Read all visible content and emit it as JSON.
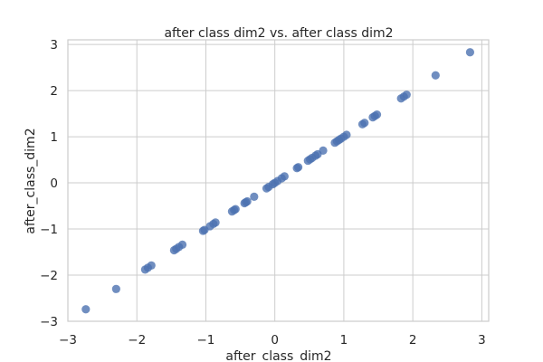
{
  "chart_data": {
    "type": "scatter",
    "title": "after class dim2 vs. after class dim2",
    "xlabel": "after_class_dim2",
    "ylabel": "after_class_dim2",
    "xlim": [
      -3,
      3.1
    ],
    "ylim": [
      -3,
      3.1
    ],
    "xticks": [
      -3,
      -2,
      -1,
      0,
      1,
      2,
      3
    ],
    "yticks": [
      -3,
      -2,
      -1,
      0,
      1,
      2,
      3
    ],
    "xtick_labels": [
      "−3",
      "−2",
      "−1",
      "0",
      "1",
      "2",
      "3"
    ],
    "ytick_labels": [
      "−3",
      "−2",
      "−1",
      "0",
      "1",
      "2",
      "3"
    ],
    "grid": true,
    "point_color": "#4c72b0",
    "series": [
      {
        "points": [
          [
            -2.74,
            -2.74
          ],
          [
            -2.3,
            -2.3
          ],
          [
            -1.88,
            -1.88
          ],
          [
            -1.84,
            -1.84
          ],
          [
            -1.79,
            -1.79
          ],
          [
            -1.46,
            -1.46
          ],
          [
            -1.43,
            -1.43
          ],
          [
            -1.39,
            -1.39
          ],
          [
            -1.34,
            -1.34
          ],
          [
            -1.04,
            -1.04
          ],
          [
            -1.02,
            -1.02
          ],
          [
            -0.94,
            -0.94
          ],
          [
            -0.89,
            -0.89
          ],
          [
            -0.86,
            -0.86
          ],
          [
            -0.62,
            -0.62
          ],
          [
            -0.59,
            -0.59
          ],
          [
            -0.57,
            -0.57
          ],
          [
            -0.44,
            -0.44
          ],
          [
            -0.42,
            -0.42
          ],
          [
            -0.4,
            -0.4
          ],
          [
            -0.3,
            -0.3
          ],
          [
            -0.12,
            -0.12
          ],
          [
            -0.09,
            -0.09
          ],
          [
            -0.03,
            -0.03
          ],
          [
            0.0,
            0.0
          ],
          [
            0.04,
            0.04
          ],
          [
            0.1,
            0.1
          ],
          [
            0.14,
            0.14
          ],
          [
            0.32,
            0.32
          ],
          [
            0.34,
            0.34
          ],
          [
            0.48,
            0.48
          ],
          [
            0.51,
            0.51
          ],
          [
            0.54,
            0.54
          ],
          [
            0.59,
            0.59
          ],
          [
            0.62,
            0.62
          ],
          [
            0.7,
            0.7
          ],
          [
            0.87,
            0.87
          ],
          [
            0.9,
            0.9
          ],
          [
            0.93,
            0.93
          ],
          [
            0.96,
            0.96
          ],
          [
            1.0,
            1.0
          ],
          [
            1.04,
            1.04
          ],
          [
            1.27,
            1.27
          ],
          [
            1.3,
            1.3
          ],
          [
            1.42,
            1.42
          ],
          [
            1.45,
            1.45
          ],
          [
            1.48,
            1.48
          ],
          [
            1.83,
            1.83
          ],
          [
            1.87,
            1.87
          ],
          [
            1.91,
            1.91
          ],
          [
            2.33,
            2.33
          ],
          [
            2.83,
            2.83
          ]
        ]
      }
    ]
  }
}
